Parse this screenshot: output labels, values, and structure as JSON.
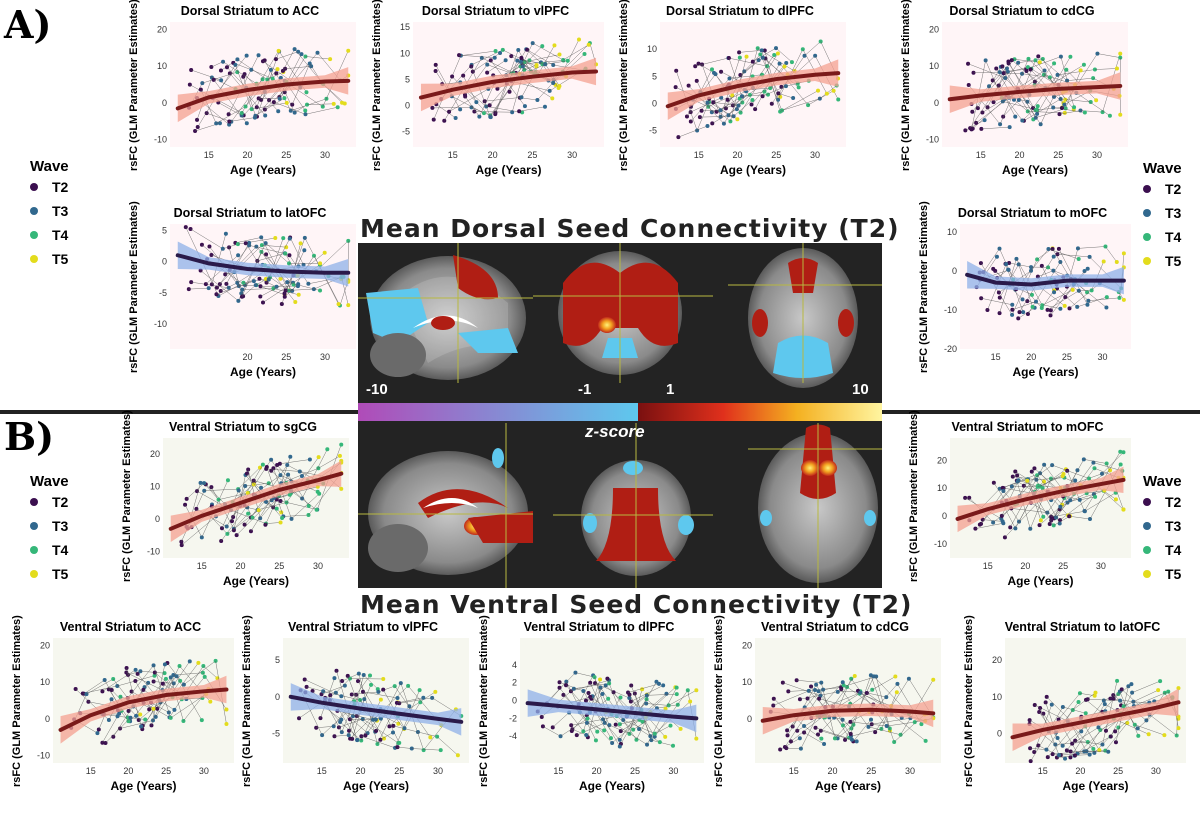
{
  "labels": {
    "panel_a": "A)",
    "panel_b": "B)"
  },
  "legend": {
    "title": "Wave",
    "items": [
      {
        "label": "T2",
        "color": "#3b0f4f"
      },
      {
        "label": "T3",
        "color": "#31688e"
      },
      {
        "label": "T4",
        "color": "#35b779"
      },
      {
        "label": "T5",
        "color": "#e3dc1c"
      }
    ]
  },
  "brain": {
    "dorsal_title": "Mean Dorsal Seed Connectivity (T2)",
    "ventral_title": "Mean Ventral Seed Connectivity (T2)",
    "colorbar": {
      "ticks": [
        "-10",
        "-1",
        "1",
        "10"
      ],
      "label": "z-score"
    }
  },
  "colors": {
    "positive_line": "#7a1a1a",
    "positive_ribbon": "#f4a090",
    "negative_line": "#2a1a4a",
    "negative_ribbon": "#8fb0e8",
    "dorsal_panel_bg": "#fff5f7",
    "ventral_panel_bg": "#f6f7ef"
  },
  "chart_data": [
    {
      "type": "scatter",
      "title": "Dorsal Striatum to ACC",
      "xlabel": "Age (Years)",
      "ylabel": "rsFC (GLM Parameter Estimates)",
      "xlim": [
        10,
        34
      ],
      "ylim": [
        -12,
        22
      ],
      "xticks": [
        "15",
        "20",
        "25",
        "30"
      ],
      "yticks": [
        "-10",
        "0",
        "10",
        "20"
      ],
      "fit": {
        "x": [
          11,
          15,
          20,
          25,
          30,
          33
        ],
        "y": [
          -1.5,
          1.5,
          3.5,
          5,
          5.8,
          6
        ],
        "sign": "positive"
      }
    },
    {
      "type": "scatter",
      "title": "Dorsal Striatum to vlPFC",
      "xlabel": "Age (Years)",
      "ylabel": "rsFC (GLM Parameter Estimates)",
      "xlim": [
        10,
        34
      ],
      "ylim": [
        -8,
        16
      ],
      "xticks": [
        "15",
        "20",
        "25",
        "30"
      ],
      "yticks": [
        "-5",
        "0",
        "5",
        "10",
        "15"
      ],
      "fit": {
        "x": [
          11,
          15,
          20,
          25,
          30,
          33
        ],
        "y": [
          1.5,
          3,
          4.5,
          5.5,
          6.3,
          6.5
        ],
        "sign": "positive"
      }
    },
    {
      "type": "scatter",
      "title": "Dorsal Striatum to dlPFC",
      "xlabel": "Age (Years)",
      "ylabel": "rsFC (GLM Parameter Estimates)",
      "xlim": [
        10,
        34
      ],
      "ylim": [
        -8,
        15
      ],
      "xticks": [
        "15",
        "20",
        "25",
        "30"
      ],
      "yticks": [
        "-5",
        "0",
        "5",
        "10"
      ],
      "fit": {
        "x": [
          11,
          15,
          20,
          25,
          30,
          33
        ],
        "y": [
          -0.5,
          1.5,
          3.2,
          4.5,
          5.3,
          5.6
        ],
        "sign": "positive"
      }
    },
    {
      "type": "scatter",
      "title": "Dorsal Striatum to cdCG",
      "xlabel": "Age (Years)",
      "ylabel": "rsFC (GLM Parameter Estimates)",
      "xlim": [
        10,
        34
      ],
      "ylim": [
        -12,
        22
      ],
      "xticks": [
        "15",
        "20",
        "25",
        "30"
      ],
      "yticks": [
        "-10",
        "0",
        "10",
        "20"
      ],
      "fit": {
        "x": [
          11,
          15,
          20,
          25,
          30,
          33
        ],
        "y": [
          1,
          2,
          3,
          3.8,
          4.3,
          4.6
        ],
        "sign": "positive"
      }
    },
    {
      "type": "scatter",
      "title": "Dorsal Striatum to latOFC",
      "xlabel": "Age (Years)",
      "ylabel": "rsFC (GLM Parameter Estimates)",
      "xlim": [
        10,
        34
      ],
      "ylim": [
        -14,
        6
      ],
      "xticks": [
        "20",
        "25",
        "30"
      ],
      "yticks": [
        "5",
        "0",
        "-5",
        "-10"
      ],
      "fit": {
        "x": [
          11,
          15,
          20,
          25,
          30,
          33
        ],
        "y": [
          1,
          -0.3,
          -1.2,
          -1.6,
          -1.8,
          -1.8
        ],
        "sign": "negative"
      }
    },
    {
      "type": "scatter",
      "title": "Dorsal Striatum to mOFC",
      "xlabel": "Age (Years)",
      "ylabel": "rsFC (GLM Parameter Estimates)",
      "xlim": [
        10,
        34
      ],
      "ylim": [
        -20,
        12
      ],
      "xticks": [
        "15",
        "20",
        "25",
        "30"
      ],
      "yticks": [
        "10",
        "0",
        "-10",
        "-20"
      ],
      "fit": {
        "x": [
          11,
          15,
          20,
          25,
          30,
          33
        ],
        "y": [
          -1,
          -3,
          -3.5,
          -2.5,
          -2.5,
          -2.5
        ],
        "sign": "negative"
      }
    },
    {
      "type": "scatter",
      "title": "Ventral Striatum to sgCG",
      "xlabel": "Age (Years)",
      "ylabel": "rsFC (GLM Parameter Estimates)",
      "xlim": [
        10,
        34
      ],
      "ylim": [
        -12,
        25
      ],
      "xticks": [
        "15",
        "20",
        "25",
        "30"
      ],
      "yticks": [
        "-10",
        "0",
        "10",
        "20"
      ],
      "fit": {
        "x": [
          11,
          15,
          20,
          25,
          30,
          33
        ],
        "y": [
          -3,
          1,
          5,
          9,
          12,
          14
        ],
        "sign": "positive"
      }
    },
    {
      "type": "scatter",
      "title": "Ventral Striatum to mOFC",
      "xlabel": "Age (Years)",
      "ylabel": "rsFC (GLM Parameter Estimates)",
      "xlim": [
        10,
        34
      ],
      "ylim": [
        -15,
        28
      ],
      "xticks": [
        "15",
        "20",
        "25",
        "30"
      ],
      "yticks": [
        "-10",
        "0",
        "10",
        "20"
      ],
      "fit": {
        "x": [
          11,
          15,
          20,
          25,
          30,
          33
        ],
        "y": [
          -1,
          2.5,
          6,
          9,
          11.5,
          13
        ],
        "sign": "positive"
      }
    },
    {
      "type": "scatter",
      "title": "Ventral Striatum to ACC",
      "xlabel": "Age (Years)",
      "ylabel": "rsFC (GLM Parameter Estimates)",
      "xlim": [
        10,
        34
      ],
      "ylim": [
        -12,
        22
      ],
      "xticks": [
        "15",
        "20",
        "25",
        "30"
      ],
      "yticks": [
        "-10",
        "0",
        "10",
        "20"
      ],
      "fit": {
        "x": [
          11,
          15,
          20,
          25,
          30,
          33
        ],
        "y": [
          -3,
          1,
          4.5,
          6.5,
          7.5,
          8
        ],
        "sign": "positive"
      }
    },
    {
      "type": "scatter",
      "title": "Ventral Striatum to vlPFC",
      "xlabel": "Age (Years)",
      "ylabel": "rsFC (GLM Parameter Estimates)",
      "xlim": [
        10,
        34
      ],
      "ylim": [
        -9,
        8
      ],
      "xticks": [
        "15",
        "20",
        "25",
        "30"
      ],
      "yticks": [
        "5",
        "0",
        "-5"
      ],
      "fit": {
        "x": [
          11,
          15,
          20,
          25,
          30,
          33
        ],
        "y": [
          0,
          -0.8,
          -1.6,
          -2.3,
          -3,
          -3.4
        ],
        "sign": "negative"
      }
    },
    {
      "type": "scatter",
      "title": "Ventral Striatum to dlPFC",
      "xlabel": "Age (Years)",
      "ylabel": "rsFC (GLM Parameter Estimates)",
      "xlim": [
        10,
        34
      ],
      "ylim": [
        -7,
        7
      ],
      "xticks": [
        "15",
        "20",
        "25",
        "30"
      ],
      "yticks": [
        "4",
        "2",
        "0",
        "-2",
        "-4"
      ],
      "fit": {
        "x": [
          11,
          15,
          20,
          25,
          30,
          33
        ],
        "y": [
          -0.3,
          -0.6,
          -1,
          -1.4,
          -1.8,
          -2
        ],
        "sign": "negative"
      }
    },
    {
      "type": "scatter",
      "title": "Ventral Striatum to cdCG",
      "xlabel": "Age (Years)",
      "ylabel": "rsFC (GLM Parameter Estimates)",
      "xlim": [
        10,
        34
      ],
      "ylim": [
        -12,
        22
      ],
      "xticks": [
        "15",
        "20",
        "25",
        "30"
      ],
      "yticks": [
        "0",
        "10",
        "20"
      ],
      "fit": {
        "x": [
          11,
          15,
          20,
          25,
          30,
          33
        ],
        "y": [
          -0.5,
          1,
          2.2,
          2.5,
          2,
          1.5
        ],
        "sign": "positive"
      }
    },
    {
      "type": "scatter",
      "title": "Ventral Striatum to latOFC",
      "xlabel": "Age (Years)",
      "ylabel": "rsFC (GLM Parameter Estimates)",
      "xlim": [
        10,
        34
      ],
      "ylim": [
        -8,
        26
      ],
      "xticks": [
        "15",
        "20",
        "25",
        "30"
      ],
      "yticks": [
        "0",
        "10",
        "20"
      ],
      "fit": {
        "x": [
          11,
          15,
          20,
          25,
          30,
          33
        ],
        "y": [
          -1,
          1,
          3,
          5,
          7,
          8.5
        ],
        "sign": "positive"
      }
    }
  ]
}
